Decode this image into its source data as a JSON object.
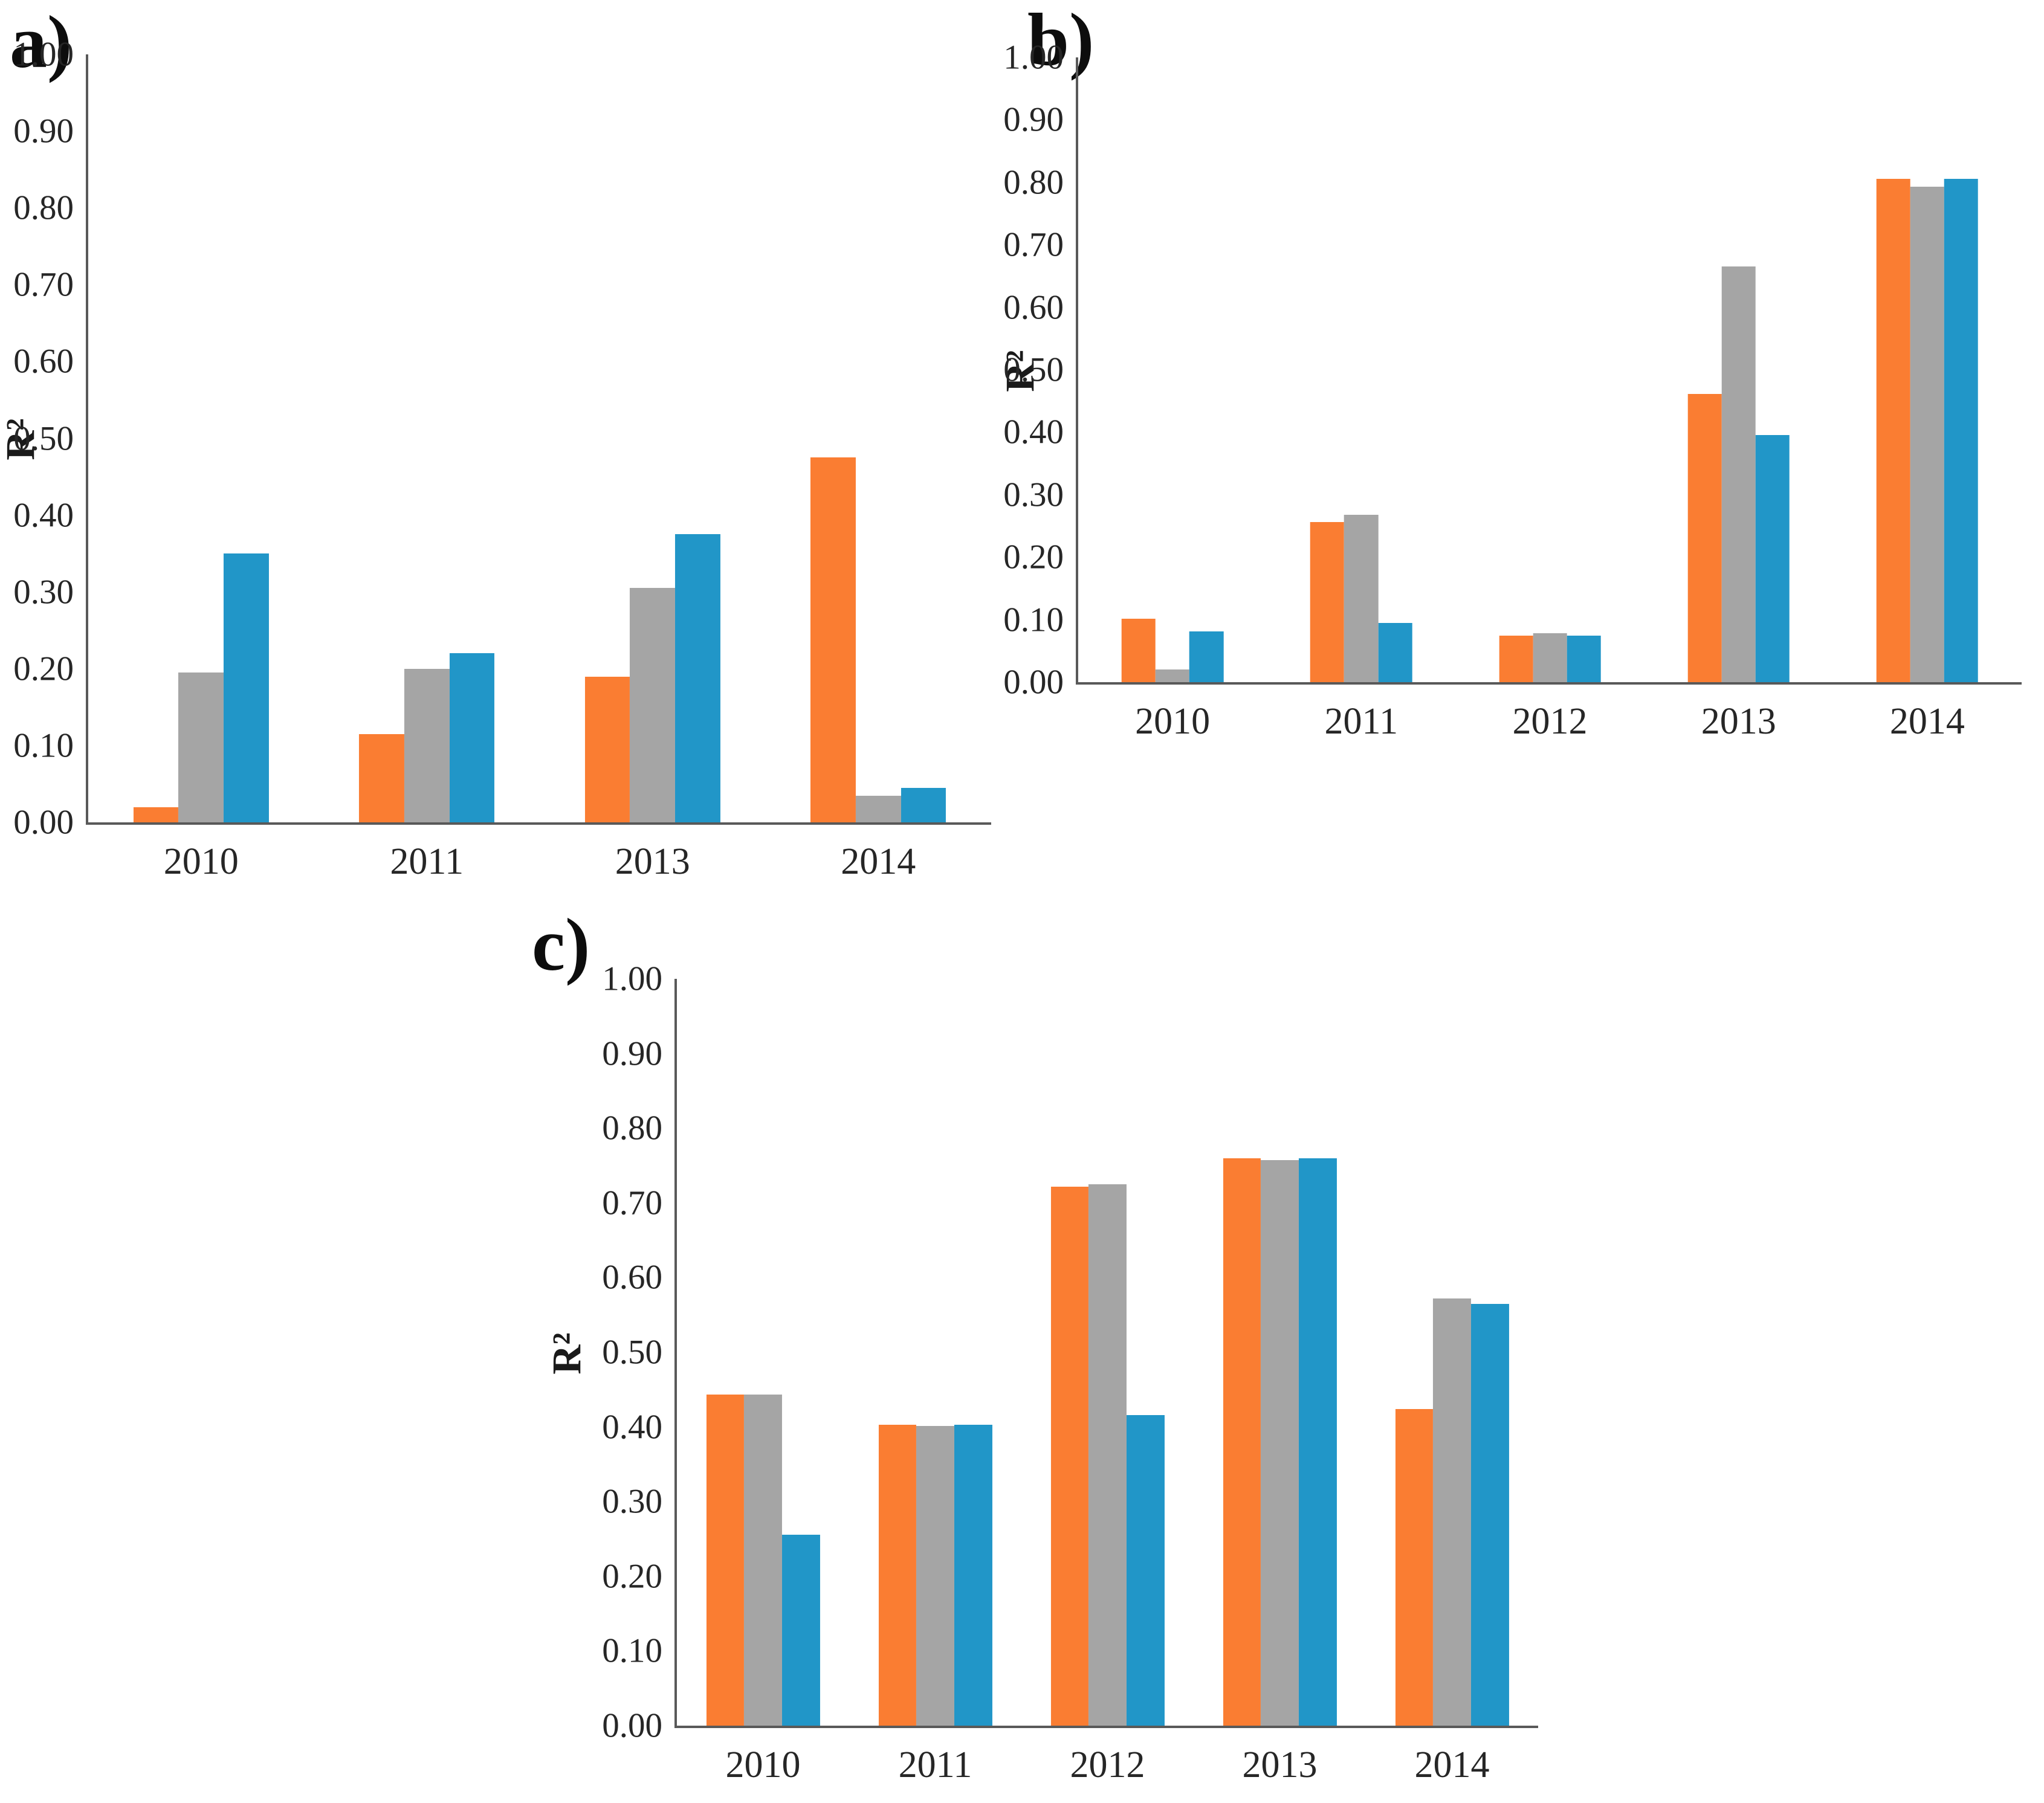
{
  "figure": {
    "background": "#ffffff",
    "axis_color": "#595959",
    "text_color": "#262626"
  },
  "chart_data": [
    {
      "panel_label": "a)",
      "type": "bar",
      "ylabel": "R²",
      "xlabel": "",
      "categories": [
        "2010",
        "2011",
        "2013",
        "2014"
      ],
      "series": [
        {
          "name": "series-1-orange",
          "color": "#FA7D32",
          "values": [
            0.02,
            0.115,
            0.19,
            0.475
          ]
        },
        {
          "name": "series-2-gray",
          "color": "#A5A5A5",
          "values": [
            0.195,
            0.2,
            0.305,
            0.035
          ]
        },
        {
          "name": "series-3-blue",
          "color": "#2196C8",
          "values": [
            0.35,
            0.22,
            0.375,
            0.045
          ]
        }
      ],
      "ylim": [
        0,
        1
      ],
      "yticks": [
        "0.00",
        "0.10",
        "0.20",
        "0.30",
        "0.40",
        "0.50",
        "0.60",
        "0.70",
        "0.80",
        "0.90",
        "1.00"
      ],
      "grid": false,
      "legend": "none"
    },
    {
      "panel_label": "b)",
      "type": "bar",
      "ylabel": "R²",
      "xlabel": "",
      "categories": [
        "2010",
        "2011",
        "2012",
        "2013",
        "2014"
      ],
      "series": [
        {
          "name": "series-1-orange",
          "color": "#FA7D32",
          "values": [
            0.102,
            0.256,
            0.074,
            0.461,
            0.806
          ]
        },
        {
          "name": "series-2-gray",
          "color": "#A5A5A5",
          "values": [
            0.02,
            0.268,
            0.078,
            0.665,
            0.793
          ]
        },
        {
          "name": "series-3-blue",
          "color": "#2196C8",
          "values": [
            0.081,
            0.095,
            0.074,
            0.396,
            0.806
          ]
        }
      ],
      "ylim": [
        0,
        1
      ],
      "yticks": [
        "0.00",
        "0.10",
        "0.20",
        "0.30",
        "0.40",
        "0.50",
        "0.60",
        "0.70",
        "0.80",
        "0.90",
        "1.00"
      ],
      "grid": false,
      "legend": "none"
    },
    {
      "panel_label": "c)",
      "type": "bar",
      "ylabel": "R²",
      "xlabel": "",
      "categories": [
        "2010",
        "2011",
        "2012",
        "2013",
        "2014"
      ],
      "series": [
        {
          "name": "series-1-orange",
          "color": "#FA7D32",
          "values": [
            0.443,
            0.403,
            0.722,
            0.76,
            0.424
          ]
        },
        {
          "name": "series-2-gray",
          "color": "#A5A5A5",
          "values": [
            0.443,
            0.401,
            0.725,
            0.757,
            0.572
          ]
        },
        {
          "name": "series-3-blue",
          "color": "#2196C8",
          "values": [
            0.256,
            0.403,
            0.416,
            0.76,
            0.565
          ]
        }
      ],
      "ylim": [
        0,
        1
      ],
      "yticks": [
        "0.00",
        "0.10",
        "0.20",
        "0.30",
        "0.40",
        "0.50",
        "0.60",
        "0.70",
        "0.80",
        "0.90",
        "1.00"
      ],
      "grid": false,
      "legend": "none"
    }
  ]
}
